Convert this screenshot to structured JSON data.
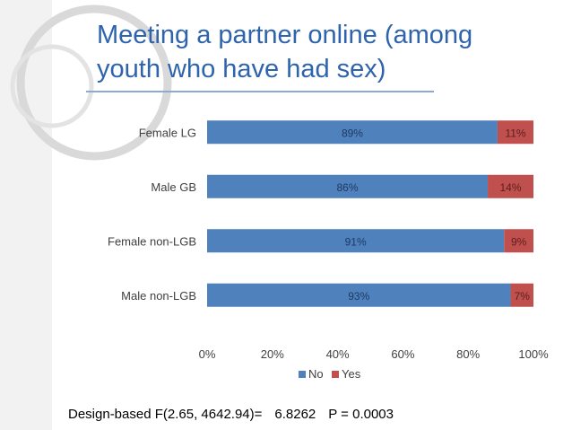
{
  "slide": {
    "title_lines": [
      "Meeting a partner online (among",
      "youth who have had sex)"
    ],
    "footer": {
      "test_label": "Design-based  F(2.65, 4642.94)=",
      "f_value": "6.8262",
      "p_value": "P = 0.0003"
    }
  },
  "chart_data": {
    "type": "bar",
    "orientation": "horizontal",
    "stacked": true,
    "percent_stacked": true,
    "title": "",
    "xlabel": "",
    "ylabel": "",
    "categories": [
      "Female LG",
      "Male GB",
      "Female non-LGB",
      "Male non-LGB"
    ],
    "series": [
      {
        "name": "No",
        "color": "#4f81bd",
        "values": [
          89,
          86,
          91,
          93
        ],
        "labels": [
          "89%",
          "86%",
          "91%",
          "93%"
        ]
      },
      {
        "name": "Yes",
        "color": "#c0504d",
        "values": [
          11,
          14,
          9,
          7
        ],
        "labels": [
          "11%",
          "14%",
          "9%",
          "7%"
        ]
      }
    ],
    "xlim": [
      0,
      100
    ],
    "x_ticks": [
      0,
      20,
      40,
      60,
      80,
      100
    ],
    "x_tick_labels": [
      "0%",
      "20%",
      "40%",
      "60%",
      "80%",
      "100%"
    ],
    "grid": false,
    "legend": {
      "position": "bottom",
      "entries": [
        "No",
        "Yes"
      ]
    }
  }
}
